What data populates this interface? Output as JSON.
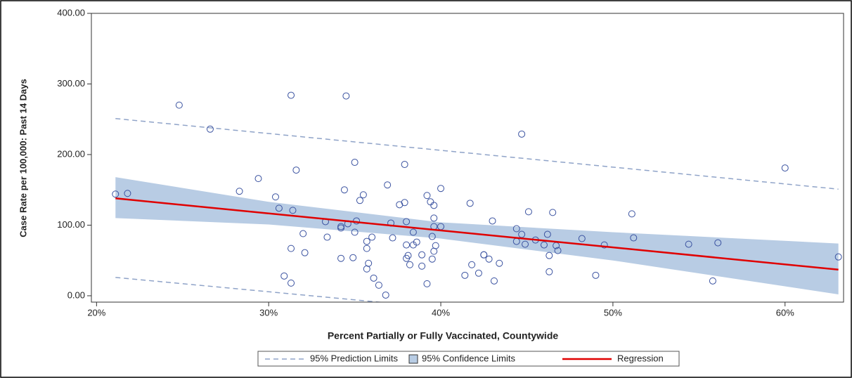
{
  "chart_data": {
    "type": "scatter",
    "x_label": "Percent Partially or Fully Vaccinated, Countywide",
    "y_label": "Case Rate per 100,000: Past 14 Days",
    "point_color": "#3a52a0",
    "x": [
      21.1,
      21.8,
      24.8,
      26.6,
      28.3,
      29.4,
      30.4,
      30.6,
      30.9,
      31.3,
      31.4,
      31.3,
      31.3,
      31.6,
      32.0,
      32.1,
      33.3,
      33.4,
      34.2,
      34.2,
      34.2,
      34.4,
      34.5,
      34.6,
      35.0,
      35.0,
      34.9,
      35.1,
      35.3,
      35.5,
      35.7,
      35.7,
      35.8,
      35.7,
      36.0,
      36.1,
      36.4,
      36.8,
      36.9,
      37.1,
      37.2,
      37.6,
      37.9,
      37.9,
      38.0,
      38.0,
      38.1,
      38.0,
      38.2,
      38.4,
      38.4,
      38.6,
      38.9,
      38.9,
      39.2,
      39.2,
      39.4,
      39.6,
      39.6,
      39.6,
      39.5,
      39.7,
      39.6,
      39.5,
      40.0,
      40.0,
      41.4,
      41.7,
      41.8,
      42.2,
      42.5,
      42.5,
      42.8,
      43.0,
      43.1,
      43.4,
      44.4,
      44.4,
      44.7,
      44.7,
      44.9,
      45.1,
      45.5,
      46.0,
      46.2,
      46.3,
      46.3,
      46.5,
      46.7,
      46.8,
      48.2,
      49.0,
      49.5,
      51.1,
      51.2,
      54.4,
      55.8,
      56.1,
      60.0,
      63.1
    ],
    "values": [
      144,
      145,
      270,
      236,
      148,
      166,
      140,
      124,
      28,
      284,
      121,
      67,
      18,
      178,
      88,
      61,
      105,
      83,
      98,
      96,
      53,
      150,
      283,
      102,
      189,
      90,
      54,
      106,
      135,
      143,
      77,
      67,
      46,
      38,
      83,
      25,
      15,
      1,
      157,
      103,
      82,
      129,
      132,
      186,
      105,
      72,
      57,
      53,
      44,
      90,
      72,
      76,
      58,
      42,
      17,
      142,
      133,
      128,
      110,
      98,
      84,
      71,
      63,
      52,
      152,
      98,
      29,
      131,
      44,
      32,
      58,
      58,
      52,
      106,
      21,
      46,
      95,
      77,
      87,
      229,
      73,
      119,
      79,
      72,
      87,
      57,
      34,
      118,
      71,
      64,
      81,
      29,
      72,
      116,
      82,
      73,
      21,
      75,
      181,
      55
    ],
    "series": [
      {
        "name": "95% Prediction Limits",
        "kind": "limits",
        "color": "#8fa3c8",
        "x": [
          21.1,
          63.1
        ],
        "upper": [
          251,
          151
        ],
        "lower": [
          26,
          -70
        ]
      },
      {
        "name": "95% Confidence Limits",
        "kind": "band",
        "color": "#b8cce4",
        "x": [
          21.1,
          30,
          40,
          50,
          63.1
        ],
        "upper": [
          168,
          133,
          104,
          90,
          74
        ],
        "lower": [
          110,
          101,
          81,
          50,
          2
        ]
      },
      {
        "name": "Regression",
        "kind": "line",
        "color": "#e00000",
        "x": [
          21.1,
          63.1
        ],
        "values": [
          138,
          37
        ]
      }
    ],
    "xlim": [
      19.7,
      63.4
    ],
    "ylim": [
      -9,
      400
    ],
    "xticks": [
      {
        "value": 20,
        "label": "20%"
      },
      {
        "value": 30,
        "label": "30%"
      },
      {
        "value": 40,
        "label": "40%"
      },
      {
        "value": 50,
        "label": "50%"
      },
      {
        "value": 60,
        "label": "60%"
      }
    ],
    "yticks": [
      {
        "value": 0,
        "label": "0.00"
      },
      {
        "value": 100,
        "label": "100.00"
      },
      {
        "value": 200,
        "label": "200.00"
      },
      {
        "value": 300,
        "label": "300.00"
      },
      {
        "value": 400,
        "label": "400.00"
      }
    ],
    "legend": "bottom"
  }
}
